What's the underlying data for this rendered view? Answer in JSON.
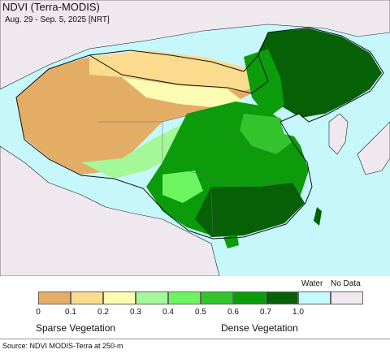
{
  "header": {
    "title": "NDVI (Terra-MODIS)",
    "subtitle": "Aug. 29 - Sep. 5, 2025 [NRT]"
  },
  "map": {
    "ocean_color": "#c6f7fb",
    "land_outside_color": "#f0e8ef",
    "border_color": "#111111"
  },
  "legend": {
    "tick_labels": [
      "0",
      "0.1",
      "0.2",
      "0.3",
      "0.4",
      "0.5",
      "0.6",
      "0.7",
      "1.0"
    ],
    "swatch_colors": [
      "#e4ad65",
      "#fbdc8e",
      "#fbfcb1",
      "#a4f898",
      "#6cf560",
      "#32c32d",
      "#0b9b0b",
      "#066006",
      "#c5f9fd",
      "#f0e8ef"
    ],
    "water_label": "Water",
    "nodata_label": "No Data",
    "sparse_label": "Sparse Vegetation",
    "dense_label": "Dense Vegetation"
  },
  "footer": {
    "source": "Source: NDVI MODIS-Terra at 250-m"
  }
}
